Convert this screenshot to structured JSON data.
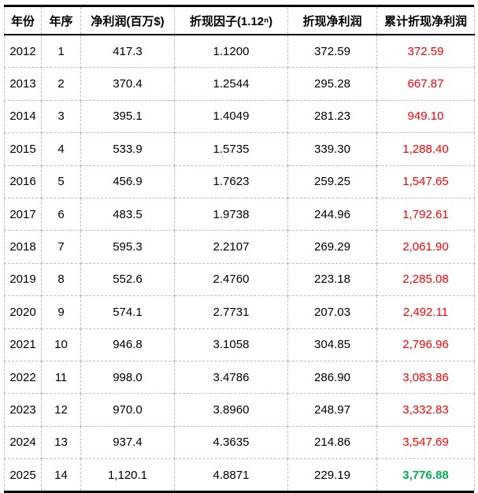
{
  "chart_data": {
    "type": "table",
    "columns": [
      "年份",
      "年序",
      "净利润(百万$)",
      "折现因子(1.12ⁿ)",
      "折现净利润",
      "累计折现净利润"
    ],
    "column_keys": [
      "year",
      "year-seq",
      "net-profit",
      "discount-factor",
      "discounted-profit",
      "cumulative-discounted-profit"
    ],
    "rows": [
      [
        "2012",
        "1",
        "417.3",
        "1.1200",
        "372.59",
        "372.59"
      ],
      [
        "2013",
        "2",
        "370.4",
        "1.2544",
        "295.28",
        "667.87"
      ],
      [
        "2014",
        "3",
        "395.1",
        "1.4049",
        "281.23",
        "949.10"
      ],
      [
        "2015",
        "4",
        "533.9",
        "1.5735",
        "339.30",
        "1,288.40"
      ],
      [
        "2016",
        "5",
        "456.9",
        "1.7623",
        "259.25",
        "1,547.65"
      ],
      [
        "2017",
        "6",
        "483.5",
        "1.9738",
        "244.96",
        "1,792.61"
      ],
      [
        "2018",
        "7",
        "595.3",
        "2.2107",
        "269.29",
        "2,061.90"
      ],
      [
        "2019",
        "8",
        "552.6",
        "2.4760",
        "223.18",
        "2,285.08"
      ],
      [
        "2020",
        "9",
        "574.1",
        "2.7731",
        "207.03",
        "2,492.11"
      ],
      [
        "2021",
        "10",
        "946.8",
        "3.1058",
        "304.85",
        "2,796.96"
      ],
      [
        "2022",
        "11",
        "998.0",
        "3.4786",
        "286.90",
        "3,083.86"
      ],
      [
        "2023",
        "12",
        "970.0",
        "3.8960",
        "248.97",
        "3,332.83"
      ],
      [
        "2024",
        "13",
        "937.4",
        "4.3635",
        "214.86",
        "3,547.69"
      ],
      [
        "2025",
        "14",
        "1,120.1",
        "4.8871",
        "229.19",
        "3,776.88"
      ]
    ]
  },
  "styles": {
    "cumulative_color": "#ff0000",
    "final_cumulative_color": "#00b050",
    "grid_color": "#bebebe",
    "border_color": "#000000"
  }
}
